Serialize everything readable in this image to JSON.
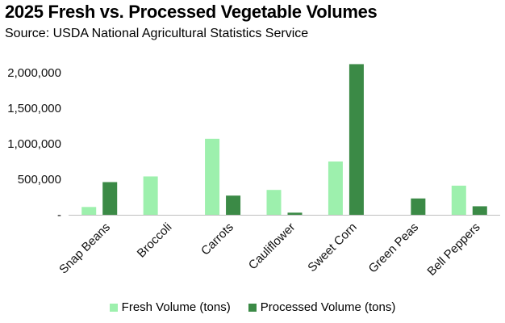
{
  "header": {
    "title": "2025 Fresh vs. Processed Vegetable Volumes",
    "subtitle": "Source: USDA National Agricultural Statistics Service"
  },
  "colors": {
    "fresh": "#9df0ad",
    "processed": "#3b8a46",
    "axis": "#bfbfbf"
  },
  "chart_data": {
    "type": "bar",
    "title": "2025 Fresh vs. Processed Vegetable Volumes",
    "subtitle": "Source: USDA National Agricultural Statistics Service",
    "categories": [
      "Snap Beans",
      "Broccoli",
      "Carrots",
      "Cauliflower",
      "Sweet Corn",
      "Green Peas",
      "Bell Peppers"
    ],
    "series": [
      {
        "name": "Fresh Volume (tons)",
        "values": [
          110000,
          540000,
          1070000,
          350000,
          750000,
          0,
          410000
        ]
      },
      {
        "name": "Processed Volume (tons)",
        "values": [
          460000,
          0,
          270000,
          30000,
          2120000,
          230000,
          120000
        ]
      }
    ],
    "yticks": [
      {
        "value": 0,
        "label": "-"
      },
      {
        "value": 500000,
        "label": "500,000"
      },
      {
        "value": 1000000,
        "label": "1,000,000"
      },
      {
        "value": 1500000,
        "label": "1,500,000"
      },
      {
        "value": 2000000,
        "label": "2,000,000"
      }
    ],
    "ylim": [
      0,
      2000000
    ],
    "grid": false,
    "legend_position": "bottom"
  }
}
